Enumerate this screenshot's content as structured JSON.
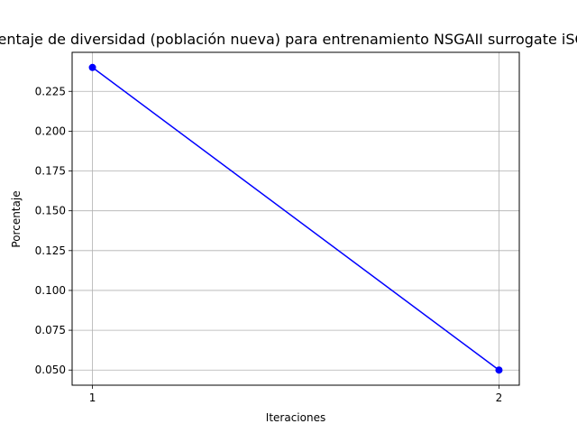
{
  "chart_data": {
    "type": "line",
    "title": "Porcentaje de diversidad (población nueva) para entrenamiento NSGAII surrogate iSOUPTR",
    "xlabel": "Iteraciones",
    "ylabel": "Porcentaje",
    "x": [
      1,
      2
    ],
    "x_ticks": [
      "1",
      "2"
    ],
    "y_ticks": [
      "0.050",
      "0.075",
      "0.100",
      "0.125",
      "0.150",
      "0.175",
      "0.200",
      "0.225"
    ],
    "series": [
      {
        "values": [
          0.24,
          0.05
        ],
        "color": "#0000ff",
        "marker": "circle"
      }
    ],
    "xlim": [
      0.95,
      2.05
    ],
    "ylim": [
      0.0405,
      0.2495
    ],
    "grid": true,
    "legend": false
  }
}
